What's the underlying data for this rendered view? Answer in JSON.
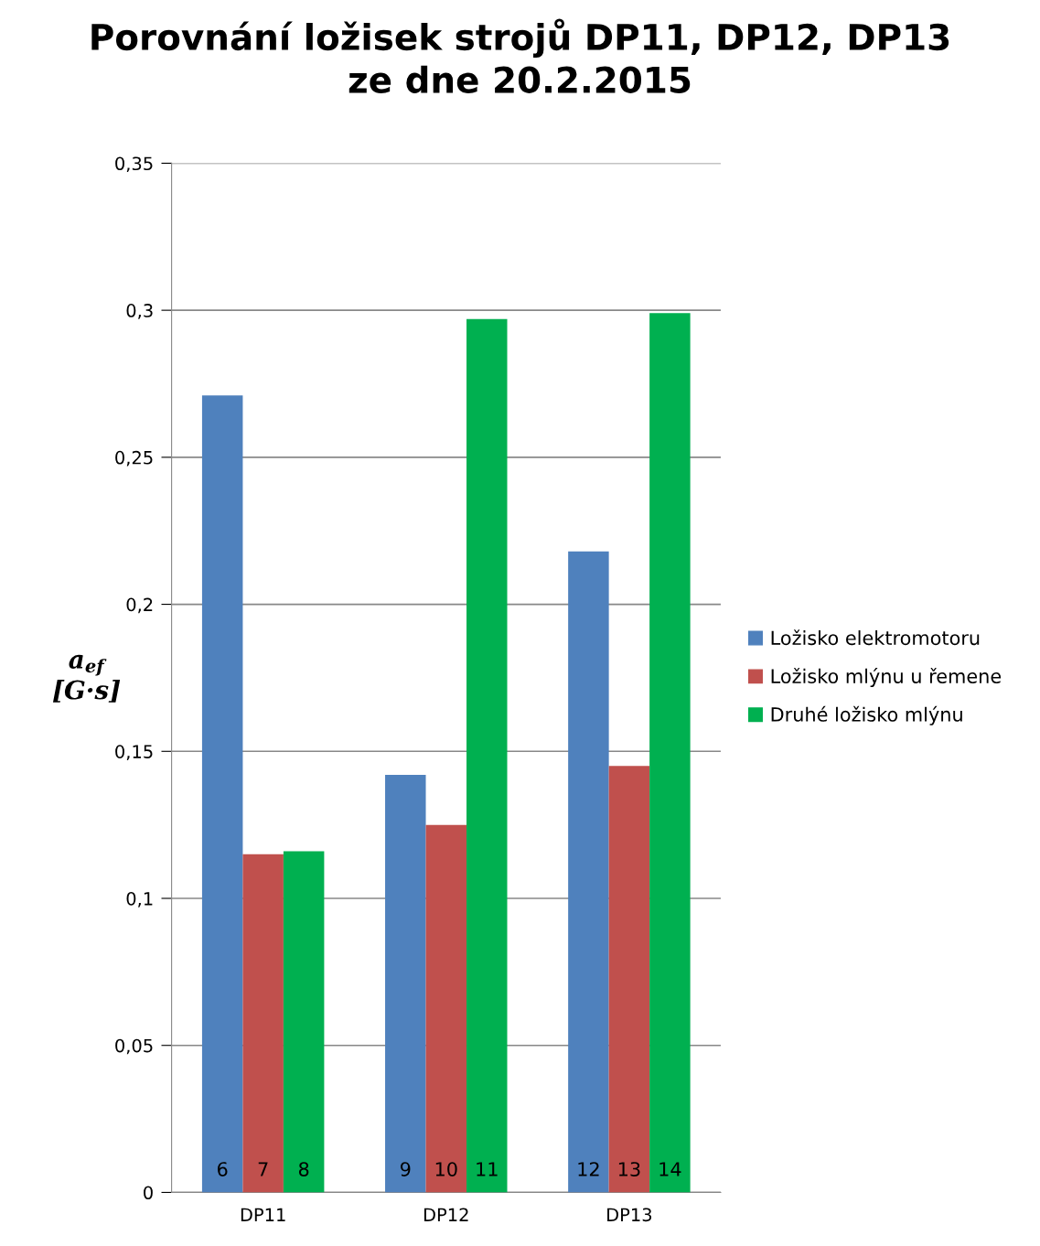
{
  "chart_data": {
    "type": "bar",
    "title": "Porovnání ložisek strojů DP11, DP12, DP13\nze dne 20.2.2015",
    "ylabel": "a$_{ef}$ [G·s]",
    "categories": [
      "DP11",
      "DP12",
      "DP13"
    ],
    "series": [
      {
        "name": "Ložisko elektromotoru",
        "color": "#4f81bd",
        "values": [
          0.271,
          0.142,
          0.218
        ]
      },
      {
        "name": "Ložisko mlýnu u řemene",
        "color": "#c0504d",
        "values": [
          0.115,
          0.125,
          0.145
        ]
      },
      {
        "name": "Druhé ložisko mlýnu",
        "color": "#00b050",
        "values": [
          0.116,
          0.297,
          0.299
        ]
      }
    ],
    "annotations": [
      "6",
      "7",
      "8",
      "9",
      "10",
      "11",
      "12",
      "13",
      "14"
    ],
    "ylim": [
      0,
      0.35
    ],
    "yticks": [
      {
        "value": 0,
        "label": "0"
      },
      {
        "value": 0.05,
        "label": "0,05"
      },
      {
        "value": 0.1,
        "label": "0,1"
      },
      {
        "value": 0.15,
        "label": "0,15"
      },
      {
        "value": 0.2,
        "label": "0,2"
      },
      {
        "value": 0.25,
        "label": "0,25"
      },
      {
        "value": 0.3,
        "label": "0,3"
      },
      {
        "value": 0.35,
        "label": "0,35"
      }
    ],
    "grid": "y",
    "legend": "right"
  }
}
